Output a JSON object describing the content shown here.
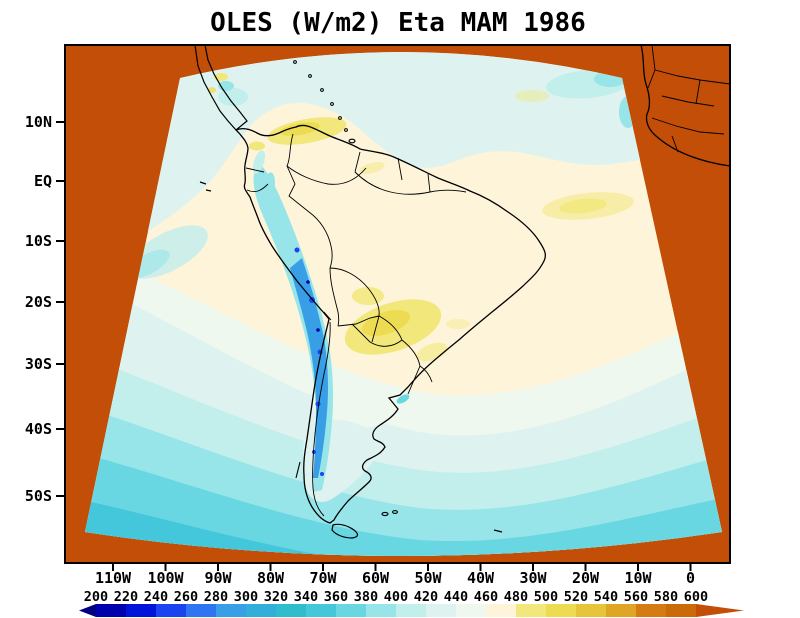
{
  "title": "OLES (W/m2) Eta MAM 1986",
  "axes": {
    "lat_labels": [
      "10N",
      "EQ",
      "10S",
      "20S",
      "30S",
      "40S",
      "50S"
    ],
    "lon_labels": [
      "110W",
      "100W",
      "90W",
      "80W",
      "70W",
      "60W",
      "50W",
      "40W",
      "30W",
      "20W",
      "10W",
      "0"
    ]
  },
  "colorbar": {
    "labels": [
      "200",
      "220",
      "240",
      "260",
      "280",
      "300",
      "320",
      "340",
      "360",
      "380",
      "400",
      "420",
      "440",
      "460",
      "480",
      "500",
      "520",
      "540",
      "560",
      "580",
      "600"
    ],
    "colors": [
      "#000080",
      "#0000ad",
      "#0013d9",
      "#1c43f0",
      "#2f74f0",
      "#389ee6",
      "#33aed8",
      "#2fbccd",
      "#44c7da",
      "#69d7e2",
      "#97e5e8",
      "#c2eeec",
      "#def3f0",
      "#eff8ee",
      "#fdf4da",
      "#f2e77b",
      "#eddc52",
      "#e6c53a",
      "#dfa524",
      "#d47c12",
      "#cb6a0a",
      "#c24e08"
    ]
  },
  "colors": {
    "background": "#c24e08",
    "frame": "#000000",
    "coastline": "#000000",
    "page": "#ffffff"
  },
  "chart_data": {
    "type": "heatmap",
    "title": "OLES (W/m2) Eta MAM 1986",
    "variable": "OLES",
    "units": "W/m2",
    "model": "Eta",
    "season": "MAM",
    "year": 1986,
    "region": "South America regional model domain (fan-shaped projection)",
    "x_ticks": [
      "110W",
      "100W",
      "90W",
      "80W",
      "70W",
      "60W",
      "50W",
      "40W",
      "30W",
      "20W",
      "10W",
      "0"
    ],
    "y_ticks": [
      "10N",
      "EQ",
      "10S",
      "20S",
      "30S",
      "40S",
      "50S"
    ],
    "colorbar_levels": [
      200,
      220,
      240,
      260,
      280,
      300,
      320,
      340,
      360,
      380,
      400,
      420,
      440,
      460,
      480,
      500,
      520,
      540,
      560,
      580,
      600
    ],
    "colorbar_colors": [
      "#000080",
      "#0000ad",
      "#0013d9",
      "#1c43f0",
      "#2f74f0",
      "#389ee6",
      "#33aed8",
      "#2fbccd",
      "#44c7da",
      "#69d7e2",
      "#97e5e8",
      "#c2eeec",
      "#def3f0",
      "#eff8ee",
      "#fdf4da",
      "#f2e77b",
      "#eddc52",
      "#e6c53a",
      "#dfa524",
      "#d47c12",
      "#cb6a0a",
      "#c24e08"
    ],
    "field_features": [
      "Broad cream region (460-480 W/m2) over tropical South America and subtropical oceans",
      "Yellow maxima (480-520 W/m2) over Venezuela/Colombia, central South America (Paraguay / northern Argentina / Bolivia) and the subtropical South Atlantic",
      "Values decrease poleward in banded arcs: ~420-440 near 35S down to ~320-360 W/m2 near 55S",
      "Narrow local minimum (260-420 W/m2) along the Andes cordillera",
      "Pale cyan band (420-440 W/m2) over equatorial oceans near the top of the domain",
      "Area outside the curved model domain rendered in the >600 W/m2 orange background color"
    ],
    "layout": {
      "legend_position": "horizontal colorbar at bottom with out-of-range arrows",
      "grid": false,
      "axis_label_side": "latitude left, longitude bottom"
    }
  }
}
